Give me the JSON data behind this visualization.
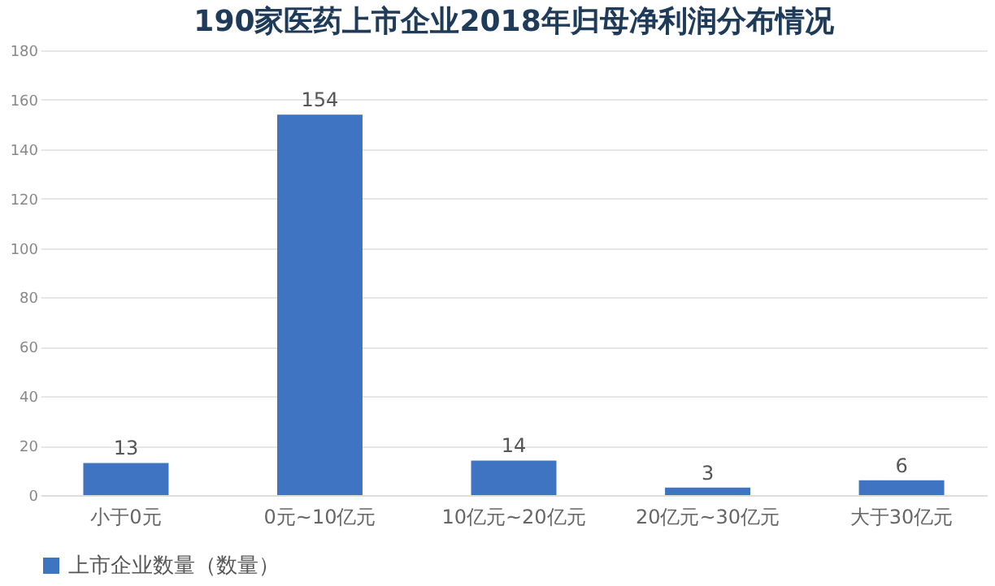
{
  "chart_data": {
    "type": "bar",
    "title": "190家医药上市企业2018年归母净利润分布情况",
    "categories": [
      "小于0元",
      "0元~10亿元",
      "10亿元~20亿元",
      "20亿元~30亿元",
      "大于30亿元"
    ],
    "series": [
      {
        "name": "上市企业数量（数量）",
        "color": "#3f74c2",
        "values": [
          13,
          154,
          14,
          3,
          6
        ]
      }
    ],
    "ylim": [
      0,
      180
    ],
    "yticks": [
      0,
      20,
      40,
      60,
      80,
      100,
      120,
      140,
      160,
      180
    ],
    "grid": "y",
    "legend": "bottom",
    "data_labels": true
  }
}
